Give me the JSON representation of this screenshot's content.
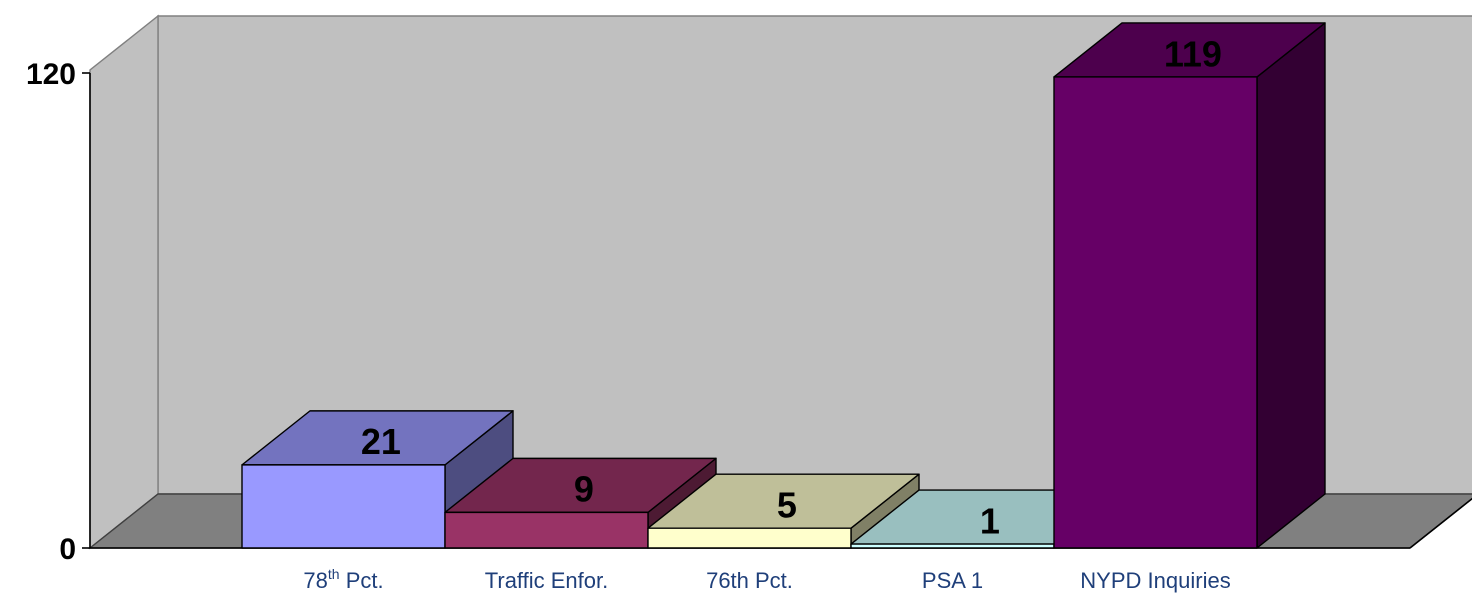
{
  "chart_data": {
    "type": "bar",
    "three_d": true,
    "title": "",
    "xlabel": "",
    "ylabel": "",
    "ylim": [
      0,
      120
    ],
    "yticks": [
      0,
      120
    ],
    "grid": false,
    "legend": "none",
    "categories": [
      {
        "base": "78",
        "sup": "th",
        "rest": " Pct."
      },
      {
        "base": "Traffic Enfor.",
        "sup": "",
        "rest": ""
      },
      {
        "base": "76th Pct.",
        "sup": "",
        "rest": ""
      },
      {
        "base": "PSA 1",
        "sup": "",
        "rest": ""
      },
      {
        "base": "NYPD Inquiries",
        "sup": "",
        "rest": ""
      }
    ],
    "values": [
      21,
      9,
      5,
      1,
      119
    ],
    "data_labels": [
      "21",
      "9",
      "5",
      "1",
      "119"
    ],
    "colors": {
      "front": [
        "#9999ff",
        "#993366",
        "#ffffcc",
        "#ccffff",
        "#660066"
      ],
      "top": [
        "#7373bf",
        "#73264d",
        "#bfbf99",
        "#99bfbf",
        "#4d004d"
      ],
      "side": [
        "#4d4d80",
        "#4d1a33",
        "#808066",
        "#668080",
        "#330033"
      ],
      "back_wall": "#c0c0c0",
      "side_wall": "#c0c0c0",
      "floor": "#808080",
      "tick_label": "#000000",
      "category_label": "#1f3f7a"
    }
  }
}
